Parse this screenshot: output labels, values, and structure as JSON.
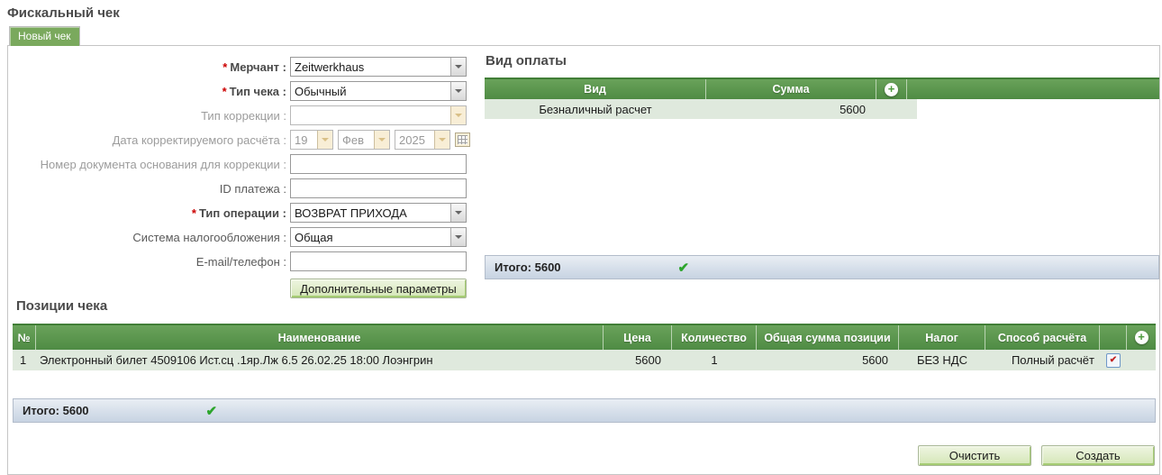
{
  "page": {
    "title": "Фискальный чек",
    "tab": "Новый чек"
  },
  "icons": {
    "plus": "+",
    "check": "✔",
    "edit": "✔"
  },
  "form": {
    "colon": " :",
    "required_marker": "*",
    "fields": [
      {
        "label": "Мерчант",
        "value": "Zeitwerkhaus",
        "required": true,
        "type": "select"
      },
      {
        "label": "Тип чека",
        "value": "Обычный",
        "required": true,
        "type": "select"
      },
      {
        "label": "Тип коррекции",
        "value": "",
        "disabled": true,
        "type": "select"
      },
      {
        "label": "Дата корректируемого расчёта",
        "disabled": true,
        "type": "date",
        "day": "19",
        "month": "Фев",
        "year": "2025"
      },
      {
        "label": "Номер документа основания для коррекции",
        "value": "",
        "type": "text"
      },
      {
        "label": "ID платежа",
        "value": "",
        "type": "text"
      },
      {
        "label": "Тип операции",
        "value": "ВОЗВРАТ ПРИХОДА",
        "required": true,
        "type": "select"
      },
      {
        "label": "Система налогообложения",
        "value": "Общая",
        "type": "select"
      },
      {
        "label": "E-mail/телефон",
        "value": "",
        "type": "text"
      }
    ],
    "extra_params_button": "Дополнительные параметры"
  },
  "payment": {
    "title": "Вид оплаты",
    "columns": [
      "Вид",
      "Сумма"
    ],
    "rows": [
      {
        "type": "Безналичный расчет",
        "amount": "5600"
      }
    ],
    "total_label": "Итого: 5600"
  },
  "positions": {
    "title": "Позиции чека",
    "columns": [
      "№",
      "Наименование",
      "Цена",
      "Количество",
      "Общая сумма позиции",
      "Налог",
      "Способ расчёта"
    ],
    "rows": [
      {
        "num": "1",
        "name": "Электронный билет 4509106 Ист.сц .1яр.Лж 6.5 26.02.25 18:00 Лоэнгрин",
        "price": "5600",
        "quantity": "1",
        "total": "5600",
        "tax": "БЕЗ НДС",
        "method": "Полный расчёт"
      }
    ],
    "total_label": "Итого: 5600"
  },
  "actions": {
    "clear": "Очистить",
    "create": "Создать"
  },
  "colors": {
    "header_green": "#5c9950",
    "row_green": "#dfe9dd",
    "tab_green": "#7aa95d",
    "total_bar_blue": "#c7d3e2",
    "check_green": "#2ca52c",
    "required_red": "#cc0000",
    "button_green": "#d4e6b6"
  }
}
